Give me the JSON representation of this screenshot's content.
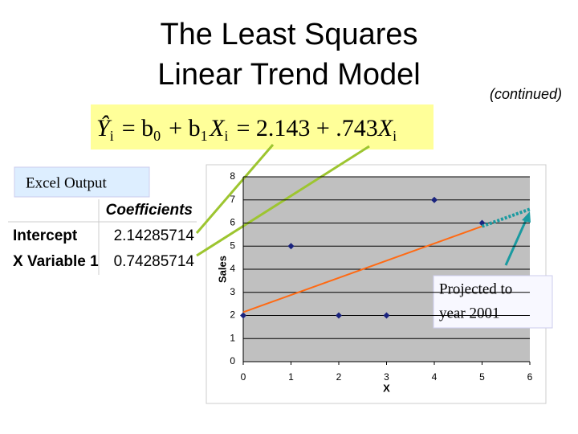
{
  "title": [
    "The Least Squares",
    "Linear Trend Model"
  ],
  "subtitle": "(continued)",
  "equation": [
    {
      "text": "Ŷ",
      "sub": "i"
    },
    {
      "text": " = b",
      "sub": "0"
    },
    {
      "text": " + b",
      "sub": "1"
    },
    {
      "text": "X",
      "sub": "i"
    },
    {
      "text": " = 2.143 + .743",
      "sub": null
    },
    {
      "text": "X",
      "sub": "i"
    }
  ],
  "excel_label": "Excel Output",
  "table": {
    "header": "Coefficients",
    "rows": [
      [
        "Intercept",
        "2.14285714"
      ],
      [
        "X Variable 1",
        "0.74285714"
      ]
    ]
  },
  "callout": [
    "Projected to",
    "year 2001"
  ],
  "chart_data": {
    "type": "scatter",
    "xlabel": "X",
    "ylabel": "Sales",
    "xlim": [
      0,
      6
    ],
    "xticks": [
      0,
      1,
      2,
      3,
      4,
      5,
      6
    ],
    "ylim": [
      0,
      8
    ],
    "yticks": [
      0,
      1,
      2,
      3,
      4,
      5,
      6,
      7,
      8
    ],
    "grid": true,
    "series": [
      {
        "name": null,
        "marker": "diamond",
        "color": "#1a237e",
        "x": [
          0,
          1,
          2,
          3,
          4,
          5
        ],
        "values": [
          2,
          5,
          2,
          2,
          7,
          6
        ]
      },
      {
        "name": null,
        "line_style": "solid",
        "color": "#ff6a13",
        "x": [
          0,
          5
        ],
        "values": [
          2.143,
          5.857
        ]
      },
      {
        "name": null,
        "line_style": "dotted",
        "color": "#1a9aa0",
        "x": [
          5,
          6
        ],
        "values": [
          5.857,
          6.6
        ]
      }
    ]
  }
}
